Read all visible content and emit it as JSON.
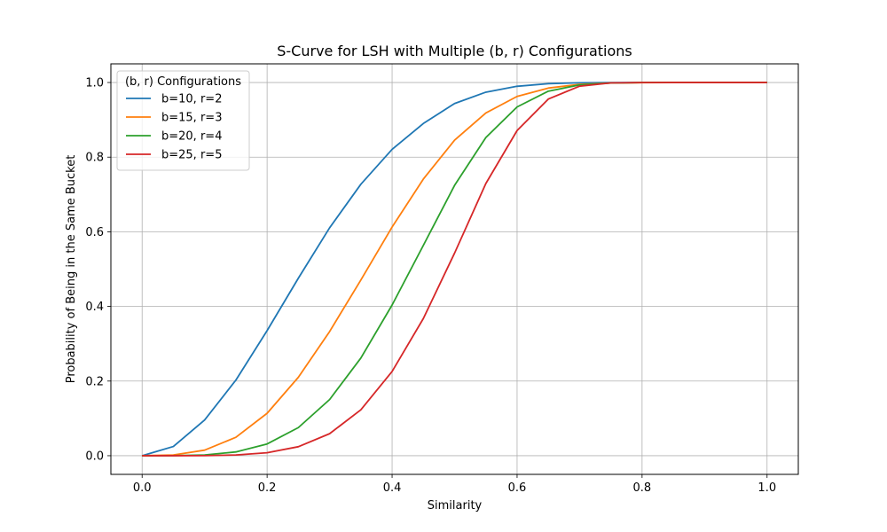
{
  "chart_data": {
    "type": "line",
    "title": "S-Curve for LSH with Multiple (b, r) Configurations",
    "xlabel": "Similarity",
    "ylabel": "Probability of Being in the Same Bucket",
    "xlim": [
      -0.05,
      1.05
    ],
    "ylim": [
      -0.05,
      1.05
    ],
    "xticks": [
      0.0,
      0.2,
      0.4,
      0.6,
      0.8,
      1.0
    ],
    "xtick_labels": [
      "0.0",
      "0.2",
      "0.4",
      "0.6",
      "0.8",
      "1.0"
    ],
    "yticks": [
      0.0,
      0.2,
      0.4,
      0.6,
      0.8,
      1.0
    ],
    "ytick_labels": [
      "0.0",
      "0.2",
      "0.4",
      "0.6",
      "0.8",
      "1.0"
    ],
    "grid": true,
    "legend": {
      "title": "(b, r) Configurations",
      "placement": "top-left"
    },
    "x": [
      0.0,
      0.05,
      0.1,
      0.15,
      0.2,
      0.25,
      0.3,
      0.35,
      0.4,
      0.45,
      0.5,
      0.55,
      0.6,
      0.65,
      0.7,
      0.75,
      0.8,
      0.85,
      0.9,
      0.95,
      1.0
    ],
    "series": [
      {
        "name": "b=10, r=2",
        "color": "#1f77b4",
        "values": [
          0.0,
          0.0247,
          0.0956,
          0.2025,
          0.3352,
          0.4756,
          0.6106,
          0.7274,
          0.8209,
          0.8902,
          0.9437,
          0.9741,
          0.9899,
          0.9968,
          0.9992,
          0.9999,
          1.0,
          1.0,
          1.0,
          1.0,
          1.0
        ]
      },
      {
        "name": "b=15, r=3",
        "color": "#ff7f0e",
        "values": [
          0.0,
          0.0019,
          0.0149,
          0.0493,
          0.1136,
          0.2102,
          0.3326,
          0.4708,
          0.6127,
          0.7412,
          0.8456,
          0.9183,
          0.9627,
          0.9851,
          0.995,
          0.9986,
          0.9997,
          1.0,
          1.0,
          1.0,
          1.0
        ]
      },
      {
        "name": "b=20, r=4",
        "color": "#2ca02c",
        "values": [
          0.0,
          0.0001,
          0.002,
          0.0101,
          0.0315,
          0.0753,
          0.1505,
          0.2616,
          0.4038,
          0.5636,
          0.7244,
          0.8524,
          0.9345,
          0.9767,
          0.9935,
          0.9987,
          0.9998,
          1.0,
          1.0,
          1.0,
          1.0
        ]
      },
      {
        "name": "b=25, r=5",
        "color": "#d62728",
        "values": [
          0.0,
          0.0,
          0.0002,
          0.0019,
          0.008,
          0.0241,
          0.059,
          0.1229,
          0.2258,
          0.3675,
          0.5429,
          0.7293,
          0.8712,
          0.9556,
          0.9902,
          0.9989,
          0.9999,
          1.0,
          1.0,
          1.0,
          1.0
        ]
      }
    ]
  }
}
